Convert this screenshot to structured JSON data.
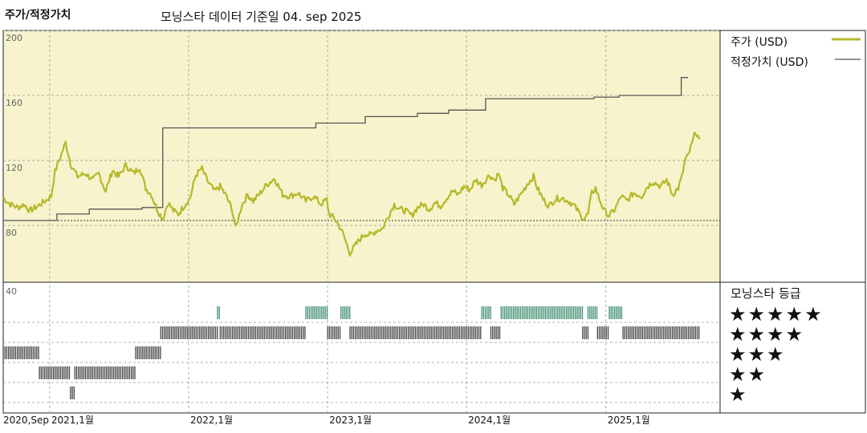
{
  "header": {
    "left_title": "주가/적정가치",
    "date_label": "모닝스타 데이터 기준일 04. sep 2025"
  },
  "colors": {
    "price": "#b5b82a",
    "fair": "#555555",
    "panel_bg": "#f7f3cc",
    "five_star": "#3f8f6f",
    "bar": "#444444"
  },
  "chart_data": [
    {
      "type": "line",
      "title": "",
      "ylabel": "",
      "ylim": [
        45,
        200
      ],
      "y_ticks": [
        80,
        120,
        160,
        200
      ],
      "reference_line": 83,
      "x_tick_labels": [
        "2020,Sep",
        "2021,1월",
        "2022,1월",
        "2023,1월",
        "2024,1월",
        "2025,1월"
      ],
      "x_tick_dates": [
        "2020-09-01",
        "2021-01-01",
        "2022-01-01",
        "2023-01-01",
        "2024-01-01",
        "2025-01-01"
      ],
      "series": [
        {
          "name": "주가 (USD)",
          "points": [
            [
              "2020-09-01",
              97
            ],
            [
              "2020-09-20",
              93
            ],
            [
              "2020-10-10",
              91
            ],
            [
              "2020-10-25",
              93
            ],
            [
              "2020-11-10",
              89
            ],
            [
              "2020-12-01",
              92
            ],
            [
              "2020-12-20",
              95
            ],
            [
              "2021-01-05",
              98
            ],
            [
              "2021-01-15",
              113
            ],
            [
              "2021-02-01",
              124
            ],
            [
              "2021-02-12",
              131
            ],
            [
              "2021-02-25",
              118
            ],
            [
              "2021-03-15",
              110
            ],
            [
              "2021-04-05",
              112
            ],
            [
              "2021-04-25",
              108
            ],
            [
              "2021-05-10",
              112
            ],
            [
              "2021-05-28",
              101
            ],
            [
              "2021-06-15",
              114
            ],
            [
              "2021-07-01",
              110
            ],
            [
              "2021-07-20",
              117
            ],
            [
              "2021-08-10",
              112
            ],
            [
              "2021-08-25",
              116
            ],
            [
              "2021-09-10",
              103
            ],
            [
              "2021-09-25",
              99
            ],
            [
              "2021-10-10",
              90
            ],
            [
              "2021-10-25",
              84
            ],
            [
              "2021-11-08",
              94
            ],
            [
              "2021-11-22",
              89
            ],
            [
              "2021-12-05",
              87
            ],
            [
              "2021-12-20",
              92
            ],
            [
              "2022-01-05",
              97
            ],
            [
              "2022-01-20",
              111
            ],
            [
              "2022-02-05",
              115
            ],
            [
              "2022-02-20",
              107
            ],
            [
              "2022-03-10",
              101
            ],
            [
              "2022-03-25",
              104
            ],
            [
              "2022-04-10",
              98
            ],
            [
              "2022-04-25",
              90
            ],
            [
              "2022-05-05",
              78
            ],
            [
              "2022-05-20",
              92
            ],
            [
              "2022-06-05",
              99
            ],
            [
              "2022-06-20",
              95
            ],
            [
              "2022-07-05",
              99
            ],
            [
              "2022-07-25",
              105
            ],
            [
              "2022-08-15",
              109
            ],
            [
              "2022-09-05",
              99
            ],
            [
              "2022-09-25",
              98
            ],
            [
              "2022-10-15",
              100
            ],
            [
              "2022-11-05",
              95
            ],
            [
              "2022-11-25",
              98
            ],
            [
              "2022-12-15",
              93
            ],
            [
              "2022-12-30",
              96
            ],
            [
              "2023-01-05",
              87
            ],
            [
              "2023-01-20",
              84
            ],
            [
              "2023-02-05",
              78
            ],
            [
              "2023-02-15",
              72
            ],
            [
              "2023-02-28",
              63
            ],
            [
              "2023-03-10",
              66
            ],
            [
              "2023-03-25",
              71
            ],
            [
              "2023-04-10",
              75
            ],
            [
              "2023-04-25",
              74
            ],
            [
              "2023-05-10",
              77
            ],
            [
              "2023-05-25",
              78
            ],
            [
              "2023-06-10",
              86
            ],
            [
              "2023-06-25",
              93
            ],
            [
              "2023-07-10",
              90
            ],
            [
              "2023-07-25",
              89
            ],
            [
              "2023-08-10",
              86
            ],
            [
              "2023-08-25",
              91
            ],
            [
              "2023-09-10",
              93
            ],
            [
              "2023-09-25",
              90
            ],
            [
              "2023-10-10",
              94
            ],
            [
              "2023-10-25",
              92
            ],
            [
              "2023-11-10",
              97
            ],
            [
              "2023-11-25",
              101
            ],
            [
              "2023-12-10",
              99
            ],
            [
              "2023-12-25",
              104
            ],
            [
              "2024-01-10",
              102
            ],
            [
              "2024-01-25",
              108
            ],
            [
              "2024-02-10",
              105
            ],
            [
              "2024-03-01",
              111
            ],
            [
              "2024-03-15",
              108
            ],
            [
              "2024-03-25",
              112
            ],
            [
              "2024-04-05",
              103
            ],
            [
              "2024-04-20",
              99
            ],
            [
              "2024-05-05",
              93
            ],
            [
              "2024-05-25",
              100
            ],
            [
              "2024-06-10",
              106
            ],
            [
              "2024-06-25",
              110
            ],
            [
              "2024-07-05",
              103
            ],
            [
              "2024-07-20",
              96
            ],
            [
              "2024-08-05",
              92
            ],
            [
              "2024-08-20",
              96
            ],
            [
              "2024-09-05",
              97
            ],
            [
              "2024-09-25",
              95
            ],
            [
              "2024-10-10",
              92
            ],
            [
              "2024-10-25",
              87
            ],
            [
              "2024-11-05",
              84
            ],
            [
              "2024-11-15",
              87
            ],
            [
              "2024-11-25",
              100
            ],
            [
              "2024-12-05",
              103
            ],
            [
              "2024-12-15",
              96
            ],
            [
              "2024-12-28",
              89
            ],
            [
              "2025-01-10",
              86
            ],
            [
              "2025-01-25",
              90
            ],
            [
              "2025-02-10",
              98
            ],
            [
              "2025-02-25",
              95
            ],
            [
              "2025-03-15",
              100
            ],
            [
              "2025-04-05",
              98
            ],
            [
              "2025-04-20",
              104
            ],
            [
              "2025-05-05",
              107
            ],
            [
              "2025-05-25",
              104
            ],
            [
              "2025-06-10",
              108
            ],
            [
              "2025-06-25",
              99
            ],
            [
              "2025-07-10",
              103
            ],
            [
              "2025-07-20",
              110
            ],
            [
              "2025-07-28",
              120
            ],
            [
              "2025-08-05",
              123
            ],
            [
              "2025-08-15",
              130
            ],
            [
              "2025-08-25",
              138
            ],
            [
              "2025-09-04",
              133
            ]
          ]
        },
        {
          "name": "적정가치 (USD)",
          "step": true,
          "points": [
            [
              "2020-09-01",
              83
            ],
            [
              "2021-01-20",
              83
            ],
            [
              "2021-01-20",
              87
            ],
            [
              "2021-04-15",
              87
            ],
            [
              "2021-04-15",
              90
            ],
            [
              "2021-09-01",
              90
            ],
            [
              "2021-09-01",
              91
            ],
            [
              "2021-10-25",
              91
            ],
            [
              "2021-10-25",
              140
            ],
            [
              "2022-12-01",
              140
            ],
            [
              "2022-12-01",
              143
            ],
            [
              "2023-04-10",
              143
            ],
            [
              "2023-04-10",
              147
            ],
            [
              "2023-08-25",
              147
            ],
            [
              "2023-08-25",
              149
            ],
            [
              "2023-11-15",
              149
            ],
            [
              "2023-11-15",
              151
            ],
            [
              "2023-12-05",
              151
            ],
            [
              "2023-12-05",
              151
            ],
            [
              "2024-02-20",
              151
            ],
            [
              "2024-02-20",
              158
            ],
            [
              "2024-12-01",
              158
            ],
            [
              "2024-12-01",
              159
            ],
            [
              "2025-02-05",
              159
            ],
            [
              "2025-02-05",
              160
            ],
            [
              "2025-07-18",
              160
            ],
            [
              "2025-07-18",
              171
            ],
            [
              "2025-08-05",
              171
            ]
          ]
        }
      ]
    },
    {
      "type": "bar",
      "title": "모닝스타 등급",
      "y_tick_labels": [
        "40"
      ],
      "levels": [
        "★★★★★",
        "★★★★",
        "★★★",
        "★★",
        "★"
      ],
      "ratings": [
        [
          "2020-09-01",
          3
        ],
        [
          "2020-12-05",
          3
        ],
        [
          "2020-12-05",
          2
        ],
        [
          "2021-02-25",
          2
        ],
        [
          "2021-02-25",
          1
        ],
        [
          "2021-03-08",
          1
        ],
        [
          "2021-03-08",
          2
        ],
        [
          "2021-08-15",
          2
        ],
        [
          "2021-08-15",
          3
        ],
        [
          "2021-10-20",
          3
        ],
        [
          "2021-10-20",
          4
        ],
        [
          "2022-03-18",
          4
        ],
        [
          "2022-03-18",
          5
        ],
        [
          "2022-03-25",
          5
        ],
        [
          "2022-03-25",
          4
        ],
        [
          "2022-11-05",
          4
        ],
        [
          "2022-11-05",
          5
        ],
        [
          "2023-01-01",
          5
        ],
        [
          "2023-01-01",
          4
        ],
        [
          "2023-02-05",
          4
        ],
        [
          "2023-02-05",
          5
        ],
        [
          "2023-03-01",
          5
        ],
        [
          "2023-03-01",
          4
        ],
        [
          "2024-02-10",
          4
        ],
        [
          "2024-02-10",
          5
        ],
        [
          "2024-03-05",
          5
        ],
        [
          "2024-03-05",
          4
        ],
        [
          "2024-04-01",
          4
        ],
        [
          "2024-04-01",
          5
        ],
        [
          "2024-11-01",
          5
        ],
        [
          "2024-11-01",
          4
        ],
        [
          "2024-11-15",
          4
        ],
        [
          "2024-11-15",
          5
        ],
        [
          "2024-12-10",
          5
        ],
        [
          "2024-12-10",
          4
        ],
        [
          "2025-01-10",
          4
        ],
        [
          "2025-01-10",
          5
        ],
        [
          "2025-02-15",
          5
        ],
        [
          "2025-02-15",
          4
        ],
        [
          "2025-09-04",
          4
        ]
      ]
    }
  ]
}
